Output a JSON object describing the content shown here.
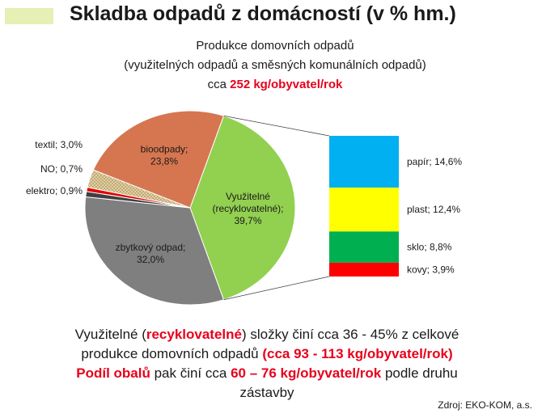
{
  "slide": {
    "title": "Skladba odpadů z domácností (v % hm.)",
    "accent_color": "#e6efb4",
    "source": "Zdroj: EKO-KOM, a.s."
  },
  "subtitle": {
    "line1": "Produkce domovních odpadů",
    "line2": "(využitelných odpadů a směsných komunálních odpadů)",
    "line3_prefix": "cca ",
    "line3_highlight": "252 kg/obyvatel/rok"
  },
  "bottom_text": {
    "l1_a": "Využitelné (",
    "l1_b": "recyklovatelné",
    "l1_c": ") složky činí cca  36 - 45% z celkové",
    "l2_a": "produkce domovních odpadů ",
    "l2_b": "(cca 93 - 113 kg/obyvatel/rok)",
    "l3_a": "Podíl obalů",
    "l3_b": " pak činí cca ",
    "l3_c": "60 – 76 kg/obyvatel/rok",
    "l3_d": " podle druhu",
    "l4": "zástavby"
  },
  "chart_data": [
    {
      "type": "pie",
      "title": "",
      "slices": [
        {
          "label": "Využitelné (recyklovatelné); 39,7%",
          "value": 39.7,
          "color": "#92d050"
        },
        {
          "label": "zbytkový odpad; 32,0%",
          "value": 32.0,
          "color": "#7f7f7f"
        },
        {
          "label": "elektro; 0,9%",
          "value": 0.9,
          "color": "#404040"
        },
        {
          "label": "NO; 0,7%",
          "value": 0.7,
          "color": "#e00000"
        },
        {
          "label": "textil; 3,0%",
          "value": 3.0,
          "color": "#d9c391"
        },
        {
          "label": "bioodpady; 23,8%",
          "value": 23.8,
          "color": "#d67650"
        }
      ]
    },
    {
      "type": "bar",
      "stacked": true,
      "title": "",
      "categories": [
        "papír",
        "plast",
        "sklo",
        "kovy"
      ],
      "values": [
        14.6,
        12.4,
        8.8,
        3.9
      ],
      "labels": [
        "papír; 14,6%",
        "plast; 12,4%",
        "sklo; 8,8%",
        "kovy; 3,9%"
      ],
      "colors": [
        "#00b0f0",
        "#ffff00",
        "#00b050",
        "#ff0000"
      ]
    }
  ]
}
